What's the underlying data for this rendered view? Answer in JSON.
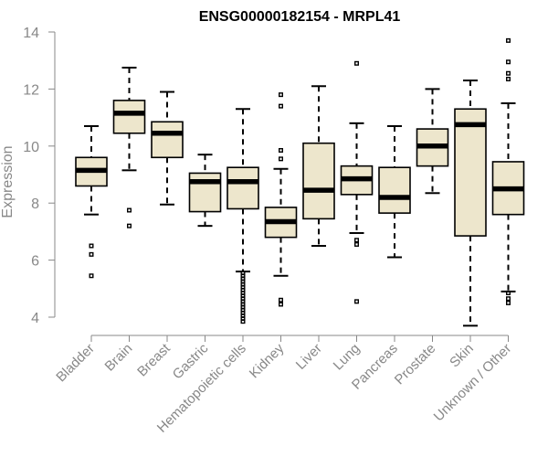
{
  "chart_data": {
    "type": "boxplot",
    "title": "ENSG00000182154 - MRPL41",
    "xlabel": "",
    "ylabel": "Expression",
    "ylim": [
      3.6,
      14.3
    ],
    "yticks": [
      4,
      6,
      8,
      10,
      12,
      14
    ],
    "box_fill": "#ede6cc",
    "categories": [
      "Bladder",
      "Brain",
      "Breast",
      "Gastric",
      "Hematopoietic cells",
      "Kidney",
      "Liver",
      "Lung",
      "Pancreas",
      "Prostate",
      "Skin",
      "Unknown / Other"
    ],
    "boxes": [
      {
        "name": "Bladder",
        "whisker_low": 7.6,
        "q1": 8.6,
        "median": 9.15,
        "q3": 9.6,
        "whisker_high": 10.7,
        "outliers": [
          6.5,
          6.2,
          5.45
        ]
      },
      {
        "name": "Brain",
        "whisker_low": 9.15,
        "q1": 10.45,
        "median": 11.15,
        "q3": 11.6,
        "whisker_high": 12.75,
        "outliers": [
          7.75,
          7.2
        ]
      },
      {
        "name": "Breast",
        "whisker_low": 7.95,
        "q1": 9.6,
        "median": 10.45,
        "q3": 10.85,
        "whisker_high": 11.9,
        "outliers": []
      },
      {
        "name": "Gastric",
        "whisker_low": 7.2,
        "q1": 7.7,
        "median": 8.75,
        "q3": 9.05,
        "whisker_high": 9.7,
        "outliers": []
      },
      {
        "name": "Hematopoietic cells",
        "whisker_low": 5.6,
        "q1": 7.8,
        "median": 8.75,
        "q3": 9.25,
        "whisker_high": 11.3,
        "outliers": [
          5.55,
          5.45,
          5.35,
          5.25,
          5.15,
          5.05,
          4.95,
          4.85,
          4.75,
          4.65,
          4.55,
          4.45,
          4.35,
          4.25,
          4.15,
          4.05,
          3.95,
          3.85
        ]
      },
      {
        "name": "Kidney",
        "whisker_low": 5.45,
        "q1": 6.8,
        "median": 7.35,
        "q3": 7.85,
        "whisker_high": 9.2,
        "outliers": [
          11.8,
          11.4,
          9.85,
          9.55,
          4.6,
          4.45
        ]
      },
      {
        "name": "Liver",
        "whisker_low": 6.5,
        "q1": 7.45,
        "median": 8.45,
        "q3": 10.1,
        "whisker_high": 12.1,
        "outliers": []
      },
      {
        "name": "Lung",
        "whisker_low": 6.95,
        "q1": 8.3,
        "median": 8.85,
        "q3": 9.3,
        "whisker_high": 10.8,
        "outliers": [
          12.9,
          6.7,
          6.55,
          4.55
        ]
      },
      {
        "name": "Pancreas",
        "whisker_low": 6.1,
        "q1": 7.65,
        "median": 8.2,
        "q3": 9.25,
        "whisker_high": 10.7,
        "outliers": []
      },
      {
        "name": "Prostate",
        "whisker_low": 8.35,
        "q1": 9.3,
        "median": 10.0,
        "q3": 10.6,
        "whisker_high": 12.0,
        "outliers": []
      },
      {
        "name": "Skin",
        "whisker_low": 3.7,
        "q1": 6.85,
        "median": 10.75,
        "q3": 11.3,
        "whisker_high": 12.3,
        "outliers": []
      },
      {
        "name": "Unknown / Other",
        "whisker_low": 4.9,
        "q1": 7.6,
        "median": 8.5,
        "q3": 9.45,
        "whisker_high": 11.5,
        "outliers": [
          13.7,
          12.95,
          12.55,
          12.35,
          4.85,
          4.65,
          4.5
        ]
      }
    ]
  }
}
